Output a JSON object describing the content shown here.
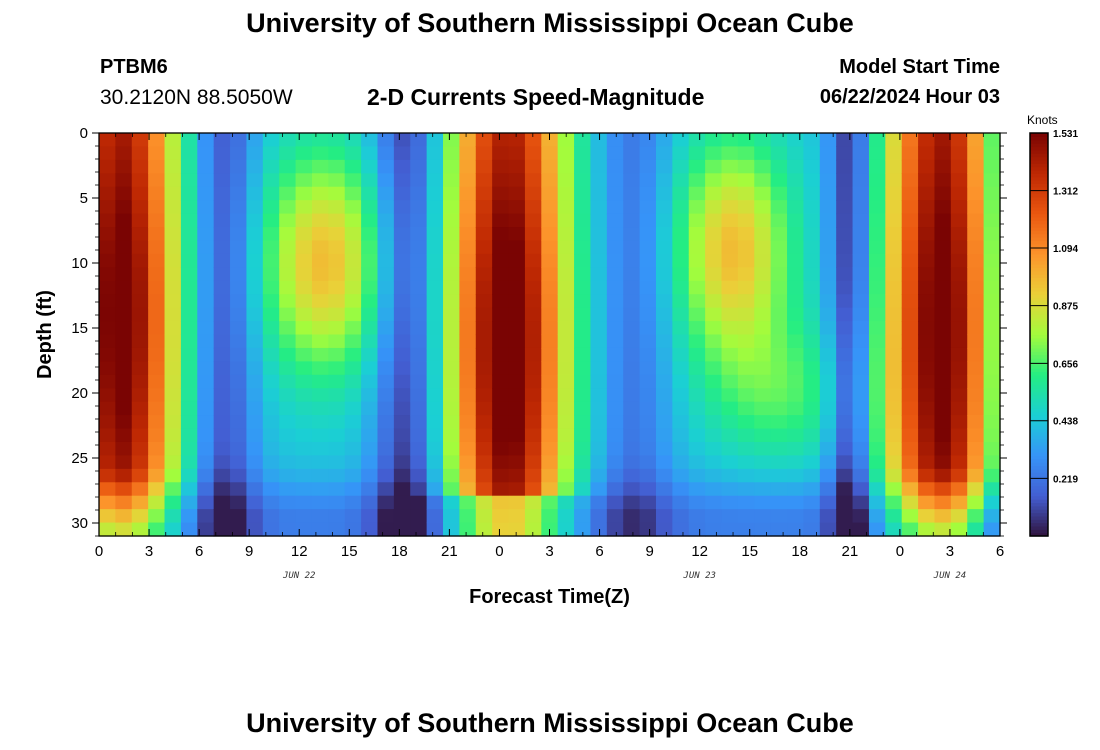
{
  "header": {
    "title": "University of Southern Mississippi Ocean Cube",
    "station": "PTBM6",
    "coords": "30.2120N  88.5050W",
    "plot_title": "2-D Currents Speed-Magnitude",
    "model_start_label": "Model Start Time",
    "model_start_time": "06/22/2024 Hour 03"
  },
  "footer": {
    "title": "University of Southern Mississippi Ocean Cube"
  },
  "chart_data": {
    "type": "heatmap",
    "title": "2-D Currents Speed-Magnitude",
    "xlabel": "Forecast Time(Z)",
    "ylabel": "Depth (ft)",
    "xlim": [
      0,
      54
    ],
    "ylim": [
      31,
      0
    ],
    "x_ticks": [
      0,
      3,
      6,
      9,
      12,
      15,
      18,
      21,
      24,
      27,
      30,
      33,
      36,
      39,
      42,
      45,
      48,
      51,
      54
    ],
    "x_tick_labels": [
      "0",
      "3",
      "6",
      "9",
      "12",
      "15",
      "18",
      "21",
      "0",
      "3",
      "6",
      "9",
      "12",
      "15",
      "18",
      "21",
      "0",
      "3",
      "6"
    ],
    "y_ticks": [
      0,
      5,
      10,
      15,
      20,
      25,
      30
    ],
    "y_tick_labels": [
      "0",
      "5",
      "10",
      "15",
      "20",
      "25",
      "30"
    ],
    "date_labels": [
      {
        "x": 12,
        "label": "JUN 22"
      },
      {
        "x": 36,
        "label": "JUN 23"
      },
      {
        "x": 51,
        "label": "JUN 24"
      }
    ],
    "colorbar": {
      "units": "Knots",
      "min": 0,
      "max": 1.531,
      "tick_values": [
        0.219,
        0.438,
        0.656,
        0.875,
        1.094,
        1.312,
        1.531
      ],
      "tick_labels": [
        "0.219",
        "0.438",
        "0.656",
        "0.875",
        "1.094",
        "1.312",
        "1.531"
      ]
    },
    "grid": {
      "columns": 55,
      "rows": 30,
      "pattern": "tidal ebb/flood cycles; near-surface maxima ~1.5 knots near hours 0-3, 24-26 and 48-51; secondary maxima ~1.0 knots near hours 13-15 and 37-39; minima ~0.1 knots near hours 7-8, 18-19, 32 and 45"
    }
  }
}
